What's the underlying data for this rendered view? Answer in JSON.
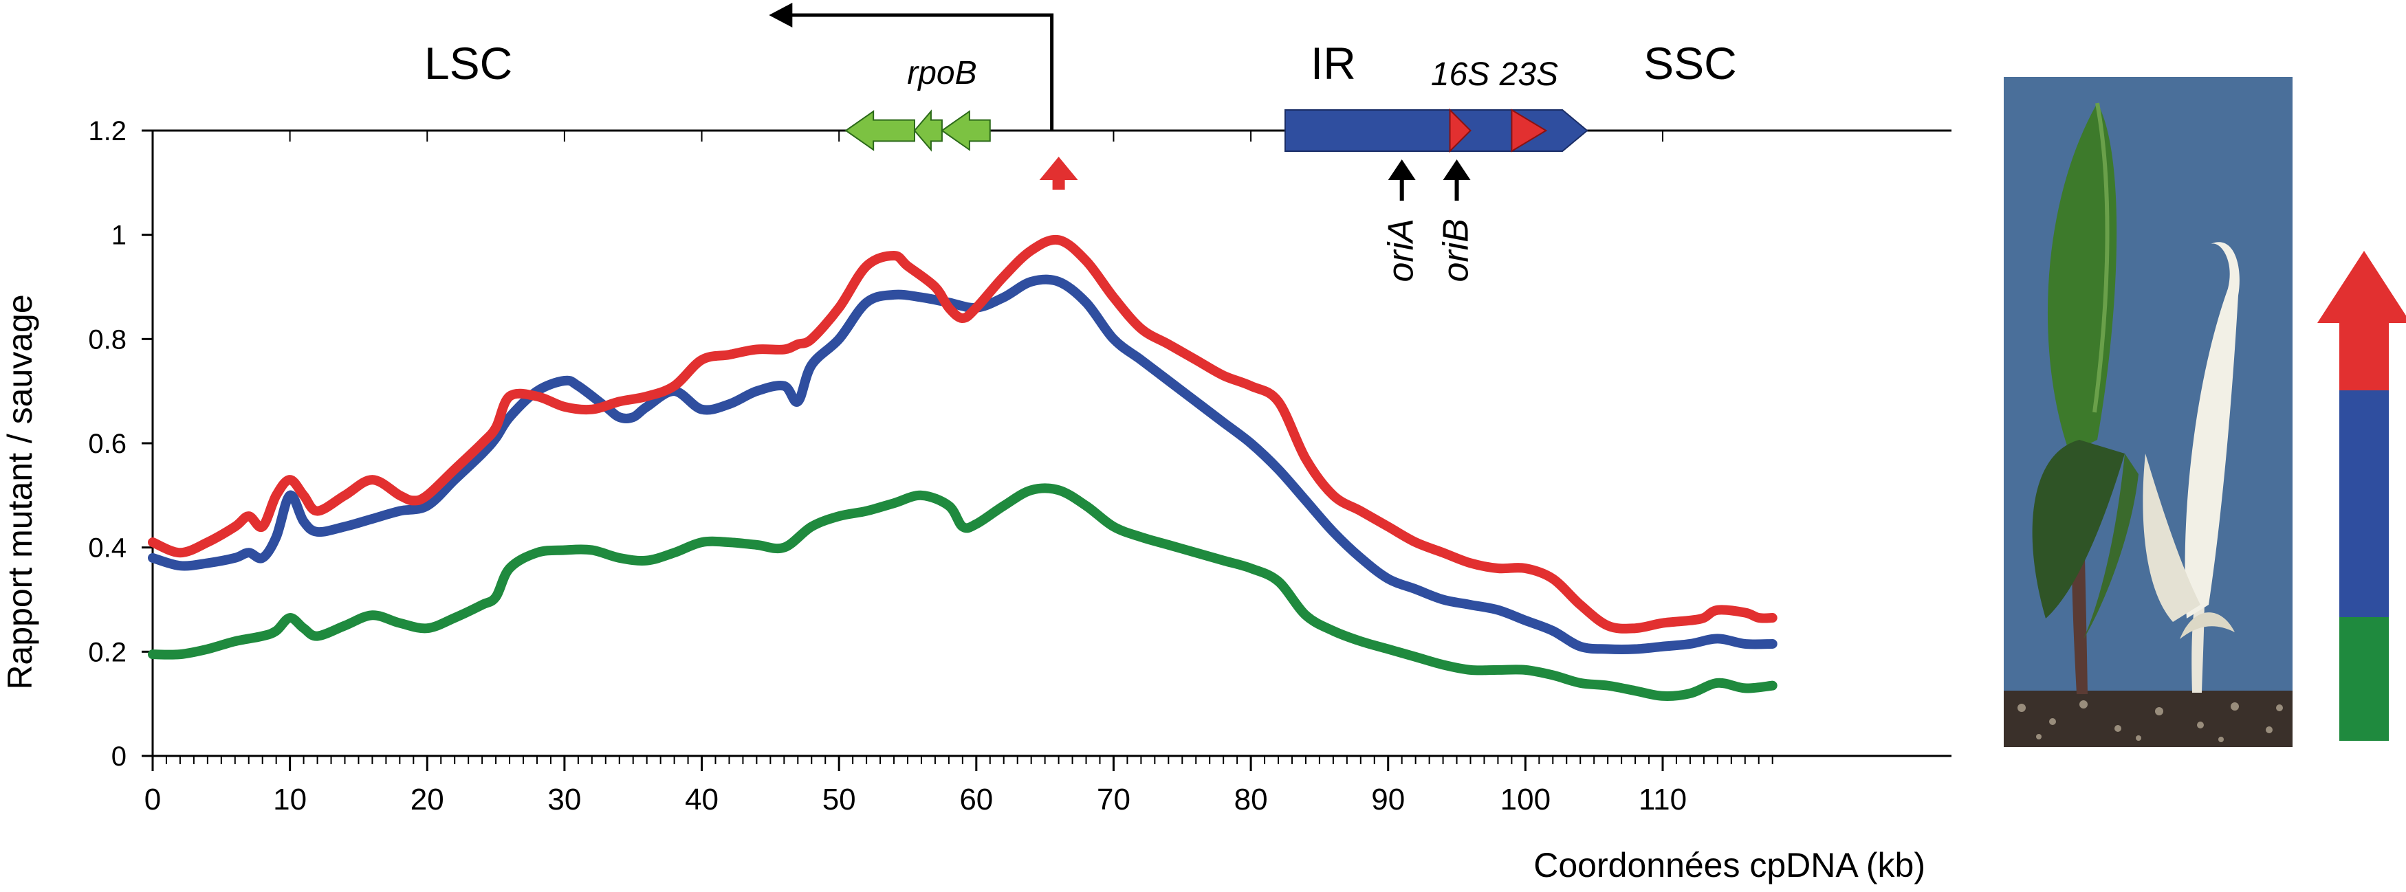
{
  "chart_data": {
    "type": "line",
    "xlabel": "Coordonnées cpDNA (kb)",
    "ylabel": "Rapport mutant / sauvage",
    "xlim": [
      0,
      118
    ],
    "ylim": [
      0,
      1.2
    ],
    "x_ticks": [
      "0",
      "10",
      "20",
      "30",
      "40",
      "50",
      "60",
      "70",
      "80",
      "90",
      "100",
      "110"
    ],
    "y_ticks": [
      "0",
      "0.2",
      "0.4",
      "0.6",
      "0.8",
      "1",
      "1.2"
    ],
    "grid": false,
    "series": [
      {
        "color": "#e23030",
        "points": [
          [
            0,
            0.41
          ],
          [
            2,
            0.39
          ],
          [
            4,
            0.41
          ],
          [
            6,
            0.44
          ],
          [
            7,
            0.46
          ],
          [
            8,
            0.44
          ],
          [
            9,
            0.5
          ],
          [
            10,
            0.53
          ],
          [
            11,
            0.5
          ],
          [
            12,
            0.47
          ],
          [
            14,
            0.5
          ],
          [
            16,
            0.53
          ],
          [
            18,
            0.5
          ],
          [
            19,
            0.49
          ],
          [
            20,
            0.5
          ],
          [
            22,
            0.55
          ],
          [
            24,
            0.6
          ],
          [
            25,
            0.63
          ],
          [
            26,
            0.69
          ],
          [
            28,
            0.69
          ],
          [
            30,
            0.67
          ],
          [
            32,
            0.665
          ],
          [
            34,
            0.68
          ],
          [
            36,
            0.69
          ],
          [
            38,
            0.71
          ],
          [
            40,
            0.76
          ],
          [
            42,
            0.77
          ],
          [
            44,
            0.78
          ],
          [
            46,
            0.78
          ],
          [
            47,
            0.79
          ],
          [
            48,
            0.8
          ],
          [
            50,
            0.86
          ],
          [
            52,
            0.94
          ],
          [
            54,
            0.96
          ],
          [
            55,
            0.94
          ],
          [
            57,
            0.9
          ],
          [
            58,
            0.86
          ],
          [
            59,
            0.84
          ],
          [
            60,
            0.86
          ],
          [
            62,
            0.92
          ],
          [
            64,
            0.97
          ],
          [
            66,
            0.99
          ],
          [
            68,
            0.95
          ],
          [
            70,
            0.88
          ],
          [
            72,
            0.82
          ],
          [
            74,
            0.79
          ],
          [
            76,
            0.76
          ],
          [
            78,
            0.73
          ],
          [
            80,
            0.71
          ],
          [
            82,
            0.68
          ],
          [
            84,
            0.57
          ],
          [
            86,
            0.5
          ],
          [
            88,
            0.47
          ],
          [
            90,
            0.44
          ],
          [
            92,
            0.41
          ],
          [
            94,
            0.39
          ],
          [
            96,
            0.37
          ],
          [
            98,
            0.36
          ],
          [
            100,
            0.36
          ],
          [
            102,
            0.34
          ],
          [
            104,
            0.29
          ],
          [
            106,
            0.25
          ],
          [
            108,
            0.245
          ],
          [
            110,
            0.255
          ],
          [
            112,
            0.26
          ],
          [
            113,
            0.265
          ],
          [
            114,
            0.28
          ],
          [
            116,
            0.275
          ],
          [
            117,
            0.265
          ],
          [
            118,
            0.265
          ]
        ]
      },
      {
        "color": "#2f4e9f",
        "points": [
          [
            0,
            0.38
          ],
          [
            2,
            0.365
          ],
          [
            4,
            0.37
          ],
          [
            6,
            0.38
          ],
          [
            7,
            0.39
          ],
          [
            8,
            0.38
          ],
          [
            9,
            0.42
          ],
          [
            10,
            0.5
          ],
          [
            11,
            0.45
          ],
          [
            12,
            0.43
          ],
          [
            14,
            0.44
          ],
          [
            16,
            0.455
          ],
          [
            18,
            0.47
          ],
          [
            20,
            0.48
          ],
          [
            22,
            0.53
          ],
          [
            24,
            0.58
          ],
          [
            25,
            0.61
          ],
          [
            26,
            0.65
          ],
          [
            28,
            0.7
          ],
          [
            30,
            0.72
          ],
          [
            31,
            0.71
          ],
          [
            33,
            0.67
          ],
          [
            34,
            0.65
          ],
          [
            35,
            0.65
          ],
          [
            36,
            0.67
          ],
          [
            38,
            0.7
          ],
          [
            40,
            0.665
          ],
          [
            42,
            0.675
          ],
          [
            44,
            0.7
          ],
          [
            46,
            0.71
          ],
          [
            47,
            0.68
          ],
          [
            48,
            0.75
          ],
          [
            50,
            0.8
          ],
          [
            52,
            0.87
          ],
          [
            54,
            0.885
          ],
          [
            56,
            0.88
          ],
          [
            58,
            0.87
          ],
          [
            60,
            0.86
          ],
          [
            62,
            0.88
          ],
          [
            64,
            0.91
          ],
          [
            66,
            0.91
          ],
          [
            68,
            0.87
          ],
          [
            70,
            0.8
          ],
          [
            72,
            0.76
          ],
          [
            74,
            0.72
          ],
          [
            76,
            0.68
          ],
          [
            78,
            0.64
          ],
          [
            80,
            0.6
          ],
          [
            82,
            0.55
          ],
          [
            84,
            0.49
          ],
          [
            86,
            0.43
          ],
          [
            88,
            0.38
          ],
          [
            90,
            0.34
          ],
          [
            92,
            0.32
          ],
          [
            94,
            0.3
          ],
          [
            96,
            0.29
          ],
          [
            98,
            0.28
          ],
          [
            100,
            0.26
          ],
          [
            102,
            0.24
          ],
          [
            104,
            0.21
          ],
          [
            106,
            0.205
          ],
          [
            108,
            0.205
          ],
          [
            110,
            0.21
          ],
          [
            112,
            0.215
          ],
          [
            114,
            0.225
          ],
          [
            116,
            0.215
          ],
          [
            118,
            0.215
          ]
        ]
      },
      {
        "color": "#1f8a3e",
        "points": [
          [
            0,
            0.195
          ],
          [
            2,
            0.195
          ],
          [
            4,
            0.205
          ],
          [
            6,
            0.22
          ],
          [
            8,
            0.23
          ],
          [
            9,
            0.24
          ],
          [
            10,
            0.265
          ],
          [
            11,
            0.245
          ],
          [
            12,
            0.23
          ],
          [
            14,
            0.25
          ],
          [
            16,
            0.27
          ],
          [
            18,
            0.255
          ],
          [
            20,
            0.245
          ],
          [
            22,
            0.265
          ],
          [
            24,
            0.29
          ],
          [
            25,
            0.305
          ],
          [
            26,
            0.36
          ],
          [
            28,
            0.39
          ],
          [
            30,
            0.395
          ],
          [
            32,
            0.395
          ],
          [
            34,
            0.38
          ],
          [
            36,
            0.375
          ],
          [
            38,
            0.39
          ],
          [
            40,
            0.41
          ],
          [
            42,
            0.41
          ],
          [
            44,
            0.405
          ],
          [
            46,
            0.4
          ],
          [
            48,
            0.44
          ],
          [
            50,
            0.46
          ],
          [
            52,
            0.47
          ],
          [
            54,
            0.485
          ],
          [
            56,
            0.5
          ],
          [
            58,
            0.48
          ],
          [
            59,
            0.44
          ],
          [
            60,
            0.445
          ],
          [
            62,
            0.48
          ],
          [
            64,
            0.51
          ],
          [
            66,
            0.51
          ],
          [
            68,
            0.48
          ],
          [
            70,
            0.44
          ],
          [
            72,
            0.42
          ],
          [
            74,
            0.405
          ],
          [
            76,
            0.39
          ],
          [
            78,
            0.375
          ],
          [
            80,
            0.36
          ],
          [
            82,
            0.335
          ],
          [
            84,
            0.27
          ],
          [
            86,
            0.24
          ],
          [
            88,
            0.22
          ],
          [
            90,
            0.205
          ],
          [
            92,
            0.19
          ],
          [
            94,
            0.175
          ],
          [
            96,
            0.165
          ],
          [
            98,
            0.165
          ],
          [
            100,
            0.165
          ],
          [
            102,
            0.155
          ],
          [
            104,
            0.14
          ],
          [
            106,
            0.135
          ],
          [
            108,
            0.125
          ],
          [
            110,
            0.115
          ],
          [
            112,
            0.12
          ],
          [
            114,
            0.14
          ],
          [
            116,
            0.13
          ],
          [
            118,
            0.135
          ]
        ]
      }
    ]
  },
  "map": {
    "regions": [
      {
        "label": "LSC",
        "kb": 23
      },
      {
        "label": "IR",
        "kb": 86
      },
      {
        "label": "SSC",
        "kb": 112
      }
    ],
    "rpoB": {
      "label": "rpoB",
      "arrows_kb": [
        [
          50.5,
          55.5
        ],
        [
          55.5,
          57.5
        ],
        [
          57.5,
          61
        ]
      ]
    },
    "promoter_kb": 65.5,
    "ir_box_kb": [
      82.5,
      104.5
    ],
    "rrna": [
      {
        "label": "16S",
        "kb": [
          94.5,
          96
        ]
      },
      {
        "label": "23S",
        "kb": [
          99,
          101.5
        ]
      }
    ],
    "origins": [
      {
        "label": "oriA",
        "kb": 91
      },
      {
        "label": "oriB",
        "kb": 95
      }
    ],
    "red_marker_kb": 66
  },
  "legend_bar": {
    "colors": [
      "#e23030",
      "#2f4e9f",
      "#1f8a3e"
    ]
  },
  "photo": {
    "background": "#4a6f9a"
  },
  "colors": {
    "red": "#e23030",
    "blue": "#2f4e9f",
    "green": "#1f8a3e",
    "lightgreen": "#7cc242"
  }
}
